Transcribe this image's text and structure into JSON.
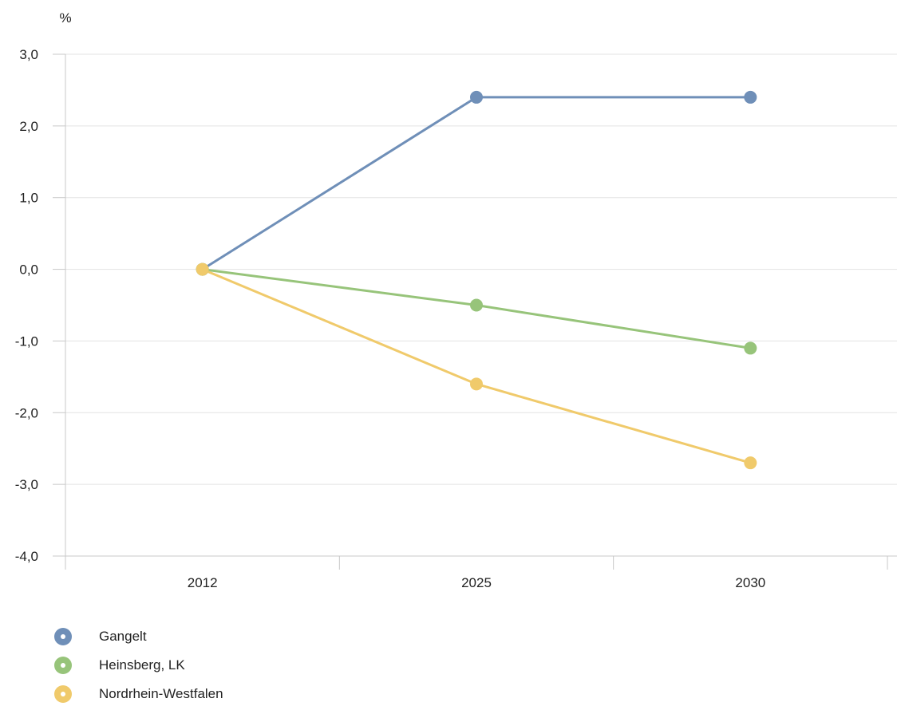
{
  "chart_data": {
    "type": "line",
    "title": "",
    "xlabel": "",
    "ylabel": "%",
    "categories": [
      "2012",
      "2025",
      "2030"
    ],
    "ylim": [
      -4.0,
      3.0
    ],
    "yticks": [
      "3,0",
      "2,0",
      "1,0",
      "0,0",
      "-1,0",
      "-2,0",
      "-3,0",
      "-4,0"
    ],
    "grid": true,
    "legend_position": "bottom-left",
    "series": [
      {
        "name": "Gangelt",
        "color": "#6f8fb8",
        "values": [
          0.0,
          2.4,
          2.4
        ]
      },
      {
        "name": "Heinsberg, LK",
        "color": "#97c47a",
        "values": [
          0.0,
          -0.5,
          -1.1
        ]
      },
      {
        "name": "Nordrhein-Westfalen",
        "color": "#f0ca6b",
        "values": [
          0.0,
          -1.6,
          -2.7
        ]
      }
    ]
  }
}
